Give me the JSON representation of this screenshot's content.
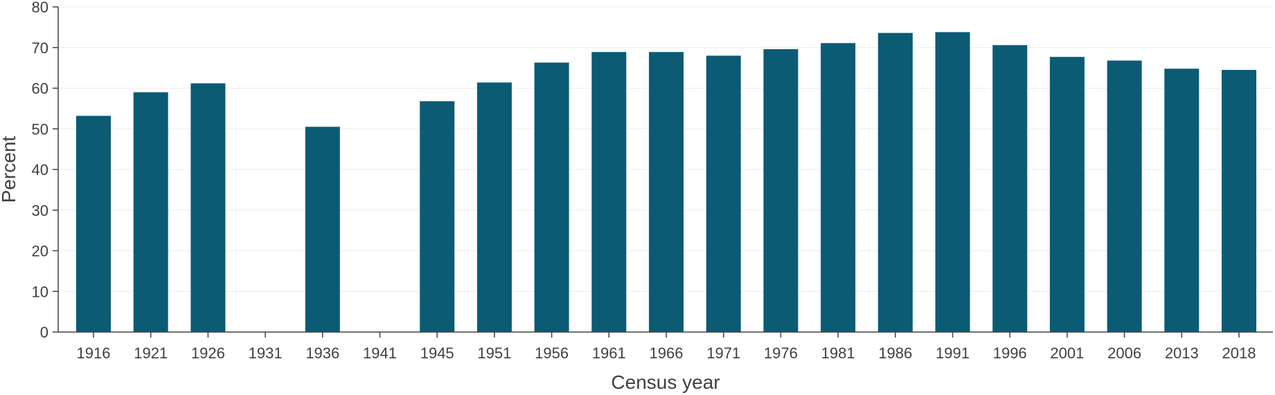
{
  "chart_data": {
    "type": "bar",
    "title": "",
    "xlabel": "Census year",
    "ylabel": "Percent",
    "ylim": [
      0,
      80
    ],
    "yticks": [
      0,
      10,
      20,
      30,
      40,
      50,
      60,
      70,
      80
    ],
    "grid": "horizontal",
    "bar_color": "#0b5b74",
    "categories": [
      "1916",
      "1921",
      "1926",
      "1931",
      "1936",
      "1941",
      "1945",
      "1951",
      "1956",
      "1961",
      "1966",
      "1971",
      "1976",
      "1981",
      "1986",
      "1991",
      "1996",
      "2001",
      "2006",
      "2013",
      "2018"
    ],
    "values": [
      53.2,
      59.0,
      61.2,
      null,
      50.5,
      null,
      56.8,
      61.4,
      66.3,
      68.9,
      68.9,
      68.0,
      69.6,
      71.1,
      73.6,
      73.8,
      70.6,
      67.7,
      66.8,
      64.8,
      64.5
    ]
  }
}
